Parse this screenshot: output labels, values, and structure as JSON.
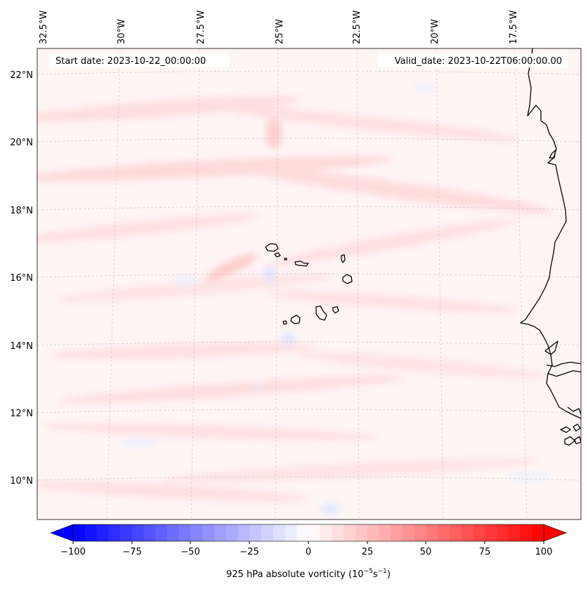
{
  "header": {
    "start_date": "Start date: 2023-10-22_00:00:00",
    "valid_date": "Valid_date: 2023-10-22T06:00:00.00"
  },
  "longitude_labels": [
    "32.5°W",
    "30°W",
    "27.5°W",
    "25°W",
    "22.5°W",
    "20°W",
    "17.5°W"
  ],
  "latitude_labels": [
    "22°N",
    "20°N",
    "18°N",
    "16°N",
    "14°N",
    "12°N",
    "10°N"
  ],
  "colorbar": {
    "ticks": [
      "−100",
      "−75",
      "−50",
      "−25",
      "0",
      "25",
      "50",
      "75",
      "100"
    ],
    "label_prefix": "925 hPa absolute vorticity (10",
    "label_exp1": "−5",
    "label_mid": "s",
    "label_exp2": "−1",
    "label_suffix": ")",
    "min": -100,
    "max": 100,
    "extend": "both",
    "colormap": "bwr",
    "min_color": "#0000ff",
    "mid_color": "#ffffff",
    "max_color": "#ff0000"
  },
  "map": {
    "features": [
      "coastline",
      "gridlines"
    ],
    "region": "Cape Verde Islands and West African coast",
    "field_background": "#fff5f5",
    "positive_band_color": "#ffd6d6",
    "negative_blob_color": "#e6ecff"
  }
}
